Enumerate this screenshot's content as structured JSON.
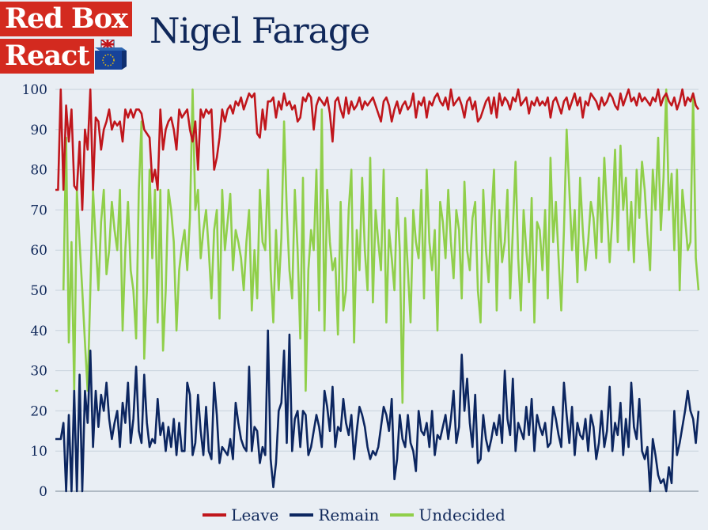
{
  "header": {
    "logo_line1": "Red Box",
    "logo_line2": "React",
    "title": "Nigel Farage"
  },
  "colors": {
    "leave": "#c0161c",
    "remain": "#0c2660",
    "undecided": "#90cf4a",
    "grid": "#c8d2dc",
    "axis_text": "#10285a",
    "logo_red": "#d32a1f"
  },
  "icons": {
    "logo_box": "ballot-box-icon"
  },
  "chart_data": {
    "type": "line",
    "title": "Nigel Farage",
    "xlabel": "",
    "ylabel": "",
    "ylim": [
      0,
      100
    ],
    "yticks": [
      0,
      10,
      20,
      30,
      40,
      50,
      60,
      70,
      80,
      90,
      100
    ],
    "grid": true,
    "legend_position": "bottom-center",
    "x": [
      0,
      1,
      2,
      3,
      4,
      5,
      6,
      7,
      8,
      9,
      10,
      11,
      12,
      13,
      14,
      15,
      16,
      17,
      18,
      19,
      20,
      21,
      22,
      23,
      24,
      25,
      26,
      27,
      28,
      29,
      30,
      31,
      32,
      33,
      34,
      35,
      36,
      37,
      38,
      39,
      40,
      41,
      42,
      43,
      44,
      45,
      46,
      47,
      48,
      49,
      50,
      51,
      52,
      53,
      54,
      55,
      56,
      57,
      58,
      59,
      60,
      61,
      62,
      63,
      64,
      65,
      66,
      67,
      68,
      69,
      70,
      71,
      72,
      73,
      74,
      75,
      76,
      77,
      78,
      79,
      80,
      81,
      82,
      83,
      84,
      85,
      86,
      87,
      88,
      89,
      90,
      91,
      92,
      93,
      94,
      95,
      96,
      97,
      98,
      99,
      100,
      101,
      102,
      103,
      104,
      105,
      106,
      107,
      108,
      109,
      110,
      111,
      112,
      113,
      114,
      115,
      116,
      117,
      118,
      119,
      120,
      121,
      122,
      123,
      124,
      125,
      126,
      127,
      128,
      129,
      130,
      131,
      132,
      133,
      134,
      135,
      136,
      137,
      138,
      139,
      140,
      141,
      142,
      143,
      144,
      145,
      146,
      147,
      148,
      149,
      150,
      151,
      152,
      153,
      154,
      155,
      156,
      157,
      158,
      159,
      160,
      161,
      162,
      163,
      164,
      165,
      166,
      167,
      168,
      169,
      170,
      171,
      172,
      173,
      174,
      175,
      176,
      177,
      178,
      179,
      180,
      181,
      182,
      183,
      184,
      185,
      186,
      187,
      188,
      189,
      190,
      191,
      192,
      193,
      194,
      195,
      196,
      197,
      198,
      199,
      200,
      201,
      202,
      203,
      204,
      205,
      206,
      207,
      208,
      209,
      210,
      211,
      212,
      213,
      214,
      215,
      216,
      217,
      218,
      219,
      220,
      221,
      222,
      223,
      224,
      225,
      226,
      227,
      228,
      229,
      230,
      231,
      232,
      233,
      234,
      235,
      236,
      237,
      238,
      239
    ],
    "series": [
      {
        "name": "Leave",
        "values": [
          75,
          75,
          100,
          75,
          96,
          87,
          95,
          76,
          75,
          87,
          70,
          90,
          85,
          100,
          75,
          93,
          92,
          85,
          90,
          92,
          95,
          90,
          92,
          91,
          92,
          87,
          95,
          93,
          95,
          93,
          95,
          95,
          94,
          90,
          89,
          88,
          77,
          80,
          75,
          95,
          85,
          90,
          92,
          93,
          90,
          85,
          95,
          93,
          94,
          95,
          90,
          87,
          92,
          80,
          95,
          93,
          95,
          94,
          95,
          80,
          83,
          88,
          95,
          92,
          95,
          96,
          94,
          97,
          96,
          98,
          95,
          97,
          99,
          98,
          99,
          89,
          88,
          95,
          90,
          97,
          97,
          98,
          93,
          97,
          95,
          99,
          96,
          97,
          95,
          96,
          92,
          93,
          98,
          97,
          99,
          98,
          90,
          96,
          98,
          97,
          96,
          98,
          94,
          87,
          97,
          98,
          95,
          93,
          98,
          94,
          97,
          95,
          96,
          98,
          95,
          97,
          96,
          97,
          98,
          96,
          94,
          92,
          97,
          98,
          96,
          92,
          95,
          97,
          94,
          96,
          97,
          95,
          96,
          99,
          93,
          97,
          96,
          98,
          93,
          97,
          96,
          98,
          99,
          97,
          96,
          98,
          95,
          100,
          96,
          97,
          98,
          96,
          93,
          97,
          98,
          95,
          97,
          92,
          93,
          95,
          97,
          98,
          94,
          98,
          93,
          99,
          96,
          98,
          97,
          95,
          98,
          97,
          100,
          96,
          97,
          98,
          94,
          97,
          96,
          98,
          96,
          97,
          96,
          98,
          93,
          97,
          98,
          96,
          94,
          97,
          98,
          95,
          97,
          99,
          96,
          98,
          93,
          97,
          96,
          99,
          98,
          97,
          95,
          98,
          96,
          97,
          99,
          98,
          96,
          95,
          99,
          96,
          98,
          100,
          97,
          98,
          96,
          99,
          97,
          98,
          97,
          96,
          98,
          97,
          100,
          96,
          98,
          99,
          97,
          96,
          98,
          95,
          97,
          100,
          96,
          98,
          97,
          99,
          96,
          95
        ],
        "color": "#c0161c"
      },
      {
        "name": "Remain",
        "values": [
          13,
          13,
          13,
          17,
          0,
          19,
          0,
          25,
          0,
          29,
          0,
          25,
          17,
          35,
          11,
          25,
          16,
          24,
          20,
          27,
          18,
          13,
          17,
          20,
          11,
          22,
          17,
          27,
          12,
          18,
          31,
          15,
          12,
          29,
          17,
          11,
          13,
          12,
          23,
          14,
          17,
          10,
          16,
          11,
          18,
          9,
          17,
          10,
          10,
          27,
          24,
          9,
          12,
          24,
          15,
          9,
          21,
          10,
          8,
          27,
          19,
          7,
          11,
          10,
          9,
          13,
          8,
          22,
          17,
          13,
          11,
          10,
          31,
          10,
          16,
          15,
          7,
          11,
          9,
          40,
          8,
          1,
          7,
          20,
          22,
          35,
          12,
          39,
          10,
          18,
          20,
          11,
          20,
          19,
          9,
          11,
          15,
          19,
          16,
          11,
          25,
          21,
          15,
          26,
          11,
          16,
          15,
          23,
          17,
          14,
          19,
          8,
          15,
          21,
          19,
          16,
          11,
          8,
          10,
          9,
          11,
          16,
          21,
          19,
          15,
          23,
          3,
          8,
          19,
          13,
          11,
          19,
          12,
          10,
          5,
          20,
          15,
          14,
          17,
          11,
          20,
          9,
          14,
          13,
          16,
          19,
          13,
          18,
          25,
          12,
          16,
          34,
          20,
          28,
          17,
          11,
          24,
          7,
          8,
          19,
          13,
          10,
          13,
          17,
          14,
          19,
          12,
          30,
          18,
          14,
          28,
          10,
          17,
          15,
          13,
          21,
          14,
          23,
          10,
          19,
          16,
          14,
          17,
          11,
          12,
          21,
          18,
          14,
          11,
          27,
          19,
          12,
          21,
          9,
          17,
          14,
          13,
          18,
          10,
          19,
          16,
          8,
          12,
          20,
          11,
          15,
          26,
          10,
          17,
          14,
          22,
          9,
          18,
          11,
          27,
          16,
          13,
          23,
          10,
          8,
          11,
          0,
          13,
          9,
          4,
          2,
          3,
          0,
          6,
          2,
          20,
          9,
          12,
          16,
          20,
          25,
          20,
          18,
          12,
          20
        ],
        "color": "#0c2660"
      },
      {
        "name": "Undecided",
        "values": [
          25,
          25,
          null,
          50,
          88,
          37,
          62,
          25,
          75,
          62,
          50,
          37,
          25,
          50,
          75,
          62,
          50,
          67,
          75,
          54,
          60,
          72,
          65,
          60,
          75,
          40,
          60,
          72,
          55,
          50,
          38,
          75,
          92,
          33,
          50,
          80,
          58,
          75,
          42,
          75,
          35,
          50,
          75,
          70,
          62,
          40,
          55,
          61,
          65,
          55,
          68,
          100,
          70,
          75,
          58,
          65,
          70,
          60,
          48,
          65,
          70,
          43,
          75,
          60,
          67,
          74,
          55,
          65,
          62,
          58,
          50,
          62,
          70,
          45,
          60,
          48,
          75,
          62,
          60,
          80,
          55,
          42,
          65,
          50,
          63,
          92,
          70,
          55,
          48,
          75,
          60,
          38,
          78,
          25,
          55,
          65,
          60,
          80,
          45,
          95,
          40,
          75,
          62,
          55,
          58,
          39,
          72,
          45,
          50,
          70,
          80,
          37,
          65,
          55,
          78,
          60,
          50,
          83,
          47,
          70,
          62,
          55,
          80,
          42,
          65,
          58,
          50,
          73,
          60,
          22,
          68,
          55,
          42,
          70,
          62,
          58,
          75,
          48,
          80,
          62,
          55,
          65,
          40,
          72,
          67,
          58,
          75,
          62,
          53,
          70,
          65,
          48,
          77,
          60,
          55,
          68,
          72,
          50,
          42,
          75,
          60,
          52,
          68,
          80,
          45,
          70,
          57,
          62,
          75,
          48,
          65,
          82,
          58,
          45,
          70,
          60,
          52,
          73,
          42,
          67,
          65,
          55,
          70,
          48,
          83,
          62,
          72,
          58,
          45,
          65,
          90,
          75,
          60,
          70,
          52,
          78,
          65,
          55,
          62,
          72,
          68,
          58,
          78,
          62,
          83,
          70,
          57,
          68,
          85,
          62,
          86,
          70,
          78,
          60,
          72,
          57,
          80,
          68,
          82,
          75,
          64,
          55,
          80,
          70,
          88,
          65,
          78,
          100,
          70,
          79,
          60,
          80,
          50,
          75,
          68,
          60,
          62,
          99,
          58,
          50
        ],
        "color": "#90cf4a"
      }
    ]
  },
  "legend": {
    "leave": "Leave",
    "remain": "Remain",
    "undecided": "Undecided"
  }
}
